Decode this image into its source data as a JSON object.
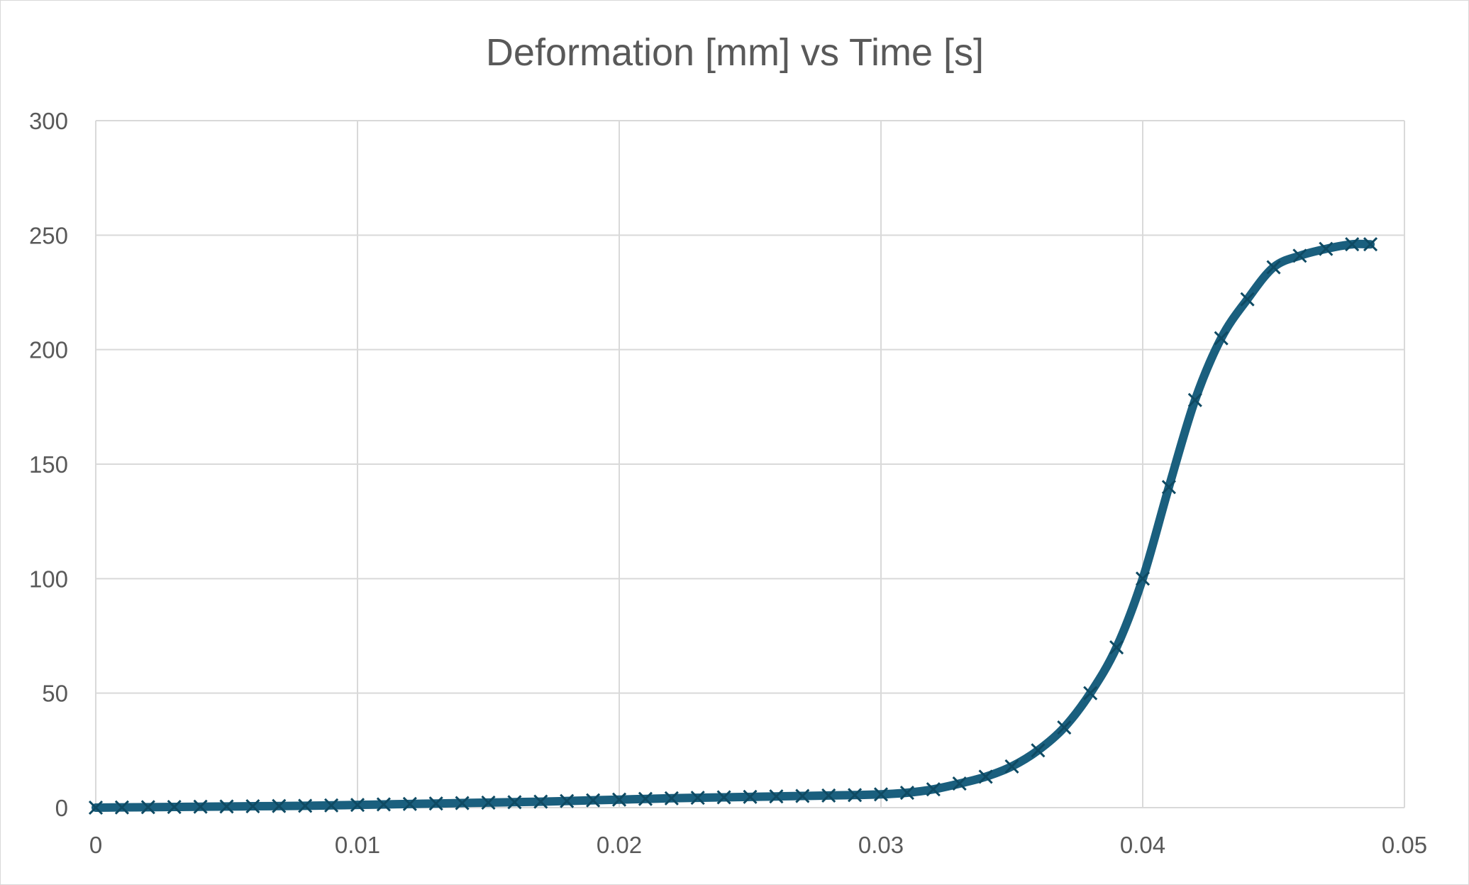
{
  "chart_data": {
    "type": "scatter",
    "title": "Deformation [mm] vs Time [s]",
    "xlabel": "",
    "ylabel": "",
    "xlim": [
      0,
      0.05
    ],
    "ylim": [
      0,
      300
    ],
    "x_ticks": [
      0,
      0.01,
      0.02,
      0.03,
      0.04,
      0.05
    ],
    "x_tick_labels": [
      "0",
      "0.01",
      "0.02",
      "0.03",
      "0.04",
      "0.05"
    ],
    "y_ticks": [
      0,
      50,
      100,
      150,
      200,
      250,
      300
    ],
    "y_tick_labels": [
      "0",
      "50",
      "100",
      "150",
      "200",
      "250",
      "300"
    ],
    "grid": true,
    "legend": "none",
    "marker": "x",
    "line": "smooth",
    "color": "#1a5f7e",
    "series": [
      {
        "x": [
          0,
          0.001,
          0.002,
          0.003,
          0.004,
          0.005,
          0.006,
          0.007,
          0.008,
          0.009,
          0.01,
          0.011,
          0.012,
          0.013,
          0.014,
          0.015,
          0.016,
          0.017,
          0.018,
          0.019,
          0.02,
          0.021,
          0.022,
          0.023,
          0.024,
          0.025,
          0.026,
          0.027,
          0.028,
          0.029,
          0.03,
          0.031,
          0.032,
          0.033,
          0.034,
          0.035,
          0.036,
          0.037,
          0.038,
          0.039,
          0.04,
          0.041,
          0.042,
          0.043,
          0.044,
          0.045,
          0.046,
          0.047,
          0.048,
          0.0487
        ],
        "y": [
          0,
          0.1,
          0.2,
          0.3,
          0.4,
          0.5,
          0.6,
          0.7,
          0.8,
          1.0,
          1.2,
          1.4,
          1.6,
          1.8,
          2.0,
          2.2,
          2.4,
          2.6,
          2.9,
          3.2,
          3.5,
          3.8,
          4.1,
          4.3,
          4.5,
          4.7,
          4.9,
          5.1,
          5.3,
          5.5,
          5.8,
          6.5,
          8,
          10.5,
          13.5,
          18,
          25,
          35,
          50,
          70,
          100,
          140,
          178,
          205,
          222,
          236,
          241,
          244,
          246,
          246
        ]
      }
    ]
  }
}
